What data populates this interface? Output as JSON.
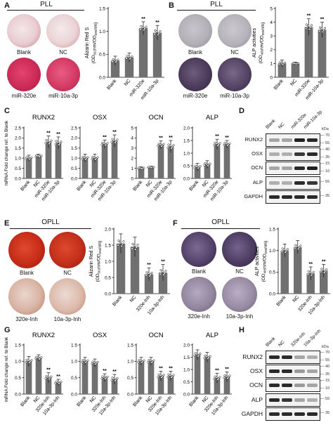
{
  "panels": {
    "A": {
      "letter": "A",
      "title": "PLL",
      "dishes": [
        "Blank",
        "NC",
        "miR-320e",
        "miR-10a-3p"
      ]
    },
    "B": {
      "letter": "B",
      "title": "PLL",
      "dishes": [
        "Blank",
        "NC",
        "miR-320e",
        "miR-10a-3p"
      ]
    },
    "C": {
      "letter": "C"
    },
    "D": {
      "letter": "D",
      "lanes": [
        "Blank",
        "NC",
        "miR-320e",
        "miR-10a-3p"
      ],
      "kda_label": "kDa",
      "rows": [
        {
          "name": "RUNX2",
          "kda": [
            "70",
            "55"
          ]
        },
        {
          "name": "OSX",
          "kda": [
            "40",
            "35"
          ]
        },
        {
          "name": "OCN",
          "kda": [
            "15",
            "10"
          ]
        },
        {
          "name": "ALP",
          "kda": [
            "55"
          ]
        },
        {
          "name": "GAPDH",
          "kda": [
            "35"
          ]
        }
      ]
    },
    "E": {
      "letter": "E",
      "title": "OPLL",
      "dishes": [
        "Blank",
        "NC",
        "320e-Inh",
        "10a-3p-Inh"
      ]
    },
    "F": {
      "letter": "F",
      "title": "OPLL",
      "dishes": [
        "Blank",
        "NC",
        "320e-Inh",
        "10a-3p-Inh"
      ]
    },
    "G": {
      "letter": "G"
    },
    "H": {
      "letter": "H",
      "lanes": [
        "Blank",
        "NC",
        "320e-Inh",
        "10a-3p-Inh"
      ],
      "kda_label": "kDa",
      "rows": [
        {
          "name": "RUNX2",
          "kda": [
            "70",
            "55"
          ]
        },
        {
          "name": "OSX",
          "kda": [
            "40",
            "35"
          ]
        },
        {
          "name": "OCN",
          "kda": [
            "15",
            "10"
          ]
        },
        {
          "name": "ALP",
          "kda": [
            "55"
          ]
        },
        {
          "name": "GAPDH",
          "kda": [
            "35"
          ]
        }
      ]
    }
  },
  "chart_data": [
    {
      "id": "A-bar",
      "type": "bar",
      "ylabel": "Alizarin Red S",
      "ylabel2": "(OD",
      "ylabel2_sub": "562",
      "ylabel2_mid": "nm/OD",
      "ylabel2_sub2": "595",
      "ylabel2_end": "nm)",
      "categories": [
        "Blank",
        "NC",
        "miR-320e",
        "miR-10a-3p"
      ],
      "values": [
        0.36,
        0.43,
        1.07,
        0.97
      ],
      "errors": [
        0.1,
        0.1,
        0.14,
        0.16
      ],
      "significance": [
        "",
        "",
        "**",
        "**"
      ],
      "ylim": [
        0,
        1.5
      ],
      "yticks": [
        "0.0",
        "0.5",
        "1.0",
        "1.5"
      ]
    },
    {
      "id": "B-bar",
      "type": "bar",
      "ylabel": "ALP activities",
      "ylabel2": "(OD",
      "ylabel2_sub": "405",
      "ylabel2_mid": "nm/OD",
      "ylabel2_sub2": "595",
      "ylabel2_end": "nm)",
      "categories": [
        "Blank",
        "NC",
        "miR-320e",
        "miR-10a-3p"
      ],
      "values": [
        1.0,
        1.0,
        3.65,
        3.45
      ],
      "errors": [
        0.25,
        0.1,
        0.6,
        0.55
      ],
      "significance": [
        "",
        "",
        "**",
        "**"
      ],
      "ylim": [
        0,
        5
      ],
      "yticks": [
        "0",
        "1",
        "2",
        "3",
        "4",
        "5"
      ]
    },
    {
      "id": "C-RUNX2",
      "type": "bar",
      "title": "RUNX2",
      "ylabel": "mRNA Fold change ref. to Blank",
      "categories": [
        "Blank",
        "NC",
        "miR-320e",
        "miR-10a-3p"
      ],
      "values": [
        1.0,
        1.1,
        1.8,
        1.75
      ],
      "errors": [
        0.15,
        0.1,
        0.3,
        0.3
      ],
      "significance": [
        "",
        "",
        "**",
        "**"
      ],
      "ylim": [
        0,
        2.5
      ],
      "yticks": [
        "0.0",
        "0.5",
        "1.0",
        "1.5",
        "2.0",
        "2.5"
      ]
    },
    {
      "id": "C-OSX",
      "type": "bar",
      "title": "OSX",
      "categories": [
        "Blank",
        "NC",
        "miR-320e",
        "miR-10a-3p"
      ],
      "values": [
        1.0,
        1.0,
        1.7,
        1.85
      ],
      "errors": [
        0.2,
        0.2,
        0.2,
        0.3
      ],
      "significance": [
        "",
        "",
        "**",
        "**"
      ],
      "ylim": [
        0,
        2.5
      ],
      "yticks": [
        "0.0",
        "0.5",
        "1.0",
        "1.5",
        "2.0",
        "2.5"
      ]
    },
    {
      "id": "C-OCN",
      "type": "bar",
      "title": "OCN",
      "categories": [
        "Blank",
        "NC",
        "miR-320e",
        "miR-10a-3p"
      ],
      "values": [
        1.0,
        1.1,
        3.3,
        3.15
      ],
      "errors": [
        0.15,
        0.1,
        0.4,
        0.6
      ],
      "significance": [
        "",
        "",
        "**",
        "**"
      ],
      "ylim": [
        0,
        5
      ],
      "yticks": [
        "0",
        "1",
        "2",
        "3",
        "4",
        "5"
      ]
    },
    {
      "id": "C-ALP",
      "type": "bar",
      "title": "ALP",
      "categories": [
        "Blank",
        "NC",
        "miR-320e",
        "miR-10a-3p"
      ],
      "values": [
        0.45,
        0.55,
        1.35,
        1.35
      ],
      "errors": [
        0.15,
        0.15,
        0.2,
        0.15
      ],
      "significance": [
        "",
        "",
        "**",
        "**"
      ],
      "ylim": [
        0,
        2.0
      ],
      "yticks": [
        "0.0",
        "0.5",
        "1.0",
        "1.5",
        "2.0"
      ]
    },
    {
      "id": "E-bar",
      "type": "bar",
      "ylabel": "Alizarin Red S",
      "ylabel2": "(OD",
      "ylabel2_sub": "562",
      "ylabel2_mid": "nm/OD",
      "ylabel2_sub2": "595",
      "ylabel2_end": "nm)",
      "categories": [
        "Blank",
        "NC",
        "320e-Inh",
        "10a-3p-Inh"
      ],
      "values": [
        1.55,
        1.45,
        0.6,
        0.65
      ],
      "errors": [
        0.3,
        0.3,
        0.2,
        0.25
      ],
      "significance": [
        "",
        "",
        "**",
        "**"
      ],
      "ylim": [
        0,
        2.0
      ],
      "yticks": [
        "0.0",
        "0.5",
        "1.0",
        "1.5",
        "2.0"
      ]
    },
    {
      "id": "F-bar",
      "type": "bar",
      "ylabel": "ALP activities",
      "ylabel2": "(OD",
      "ylabel2_sub": "405",
      "ylabel2_mid": "nm/OD",
      "ylabel2_sub2": "595",
      "ylabel2_end": "nm)",
      "categories": [
        "Blank",
        "NC",
        "320e-Inh",
        "10a-3p-Inh"
      ],
      "values": [
        1.0,
        1.08,
        0.47,
        0.53
      ],
      "errors": [
        0.15,
        0.15,
        0.15,
        0.15
      ],
      "significance": [
        "",
        "",
        "**",
        "**"
      ],
      "ylim": [
        0,
        1.5
      ],
      "yticks": [
        "0.0",
        "0.5",
        "1.0",
        "1.5"
      ]
    },
    {
      "id": "G-RUNX2",
      "type": "bar",
      "title": "RUNX2",
      "ylabel": "mRNA Fold change ref. to Blank",
      "categories": [
        "Blank",
        "NC",
        "320e-Inh",
        "10a-3p-Inh"
      ],
      "values": [
        1.0,
        1.1,
        0.5,
        0.35
      ],
      "errors": [
        0.15,
        0.1,
        0.15,
        0.1
      ],
      "significance": [
        "",
        "",
        "**",
        "**"
      ],
      "ylim": [
        0,
        1.5
      ],
      "yticks": [
        "0.0",
        "0.5",
        "1.0",
        "1.5"
      ]
    },
    {
      "id": "G-OSX",
      "type": "bar",
      "title": "OSX",
      "categories": [
        "Blank",
        "NC",
        "320e-Inh",
        "10a-3p-Inh"
      ],
      "values": [
        1.0,
        0.95,
        0.5,
        0.45
      ],
      "errors": [
        0.12,
        0.12,
        0.12,
        0.15
      ],
      "significance": [
        "",
        "",
        "**",
        "**"
      ],
      "ylim": [
        0,
        1.5
      ],
      "yticks": [
        "0.0",
        "0.5",
        "1.0",
        "1.5"
      ]
    },
    {
      "id": "G-OCN",
      "type": "bar",
      "title": "OCN",
      "categories": [
        "Blank",
        "NC",
        "320e-Inh",
        "10a-3p-Inh"
      ],
      "values": [
        1.0,
        1.0,
        0.55,
        0.55
      ],
      "errors": [
        0.12,
        0.12,
        0.15,
        0.15
      ],
      "significance": [
        "",
        "",
        "**",
        "**"
      ],
      "ylim": [
        0,
        1.5
      ],
      "yticks": [
        "0.0",
        "0.5",
        "1.0",
        "1.5"
      ]
    },
    {
      "id": "G-ALP",
      "type": "bar",
      "title": "ALP",
      "categories": [
        "Blank",
        "NC",
        "320e-Inh",
        "10a-3p-Inh"
      ],
      "values": [
        1.6,
        1.5,
        0.65,
        0.7
      ],
      "errors": [
        0.2,
        0.2,
        0.2,
        0.2
      ],
      "significance": [
        "",
        "",
        "**",
        "**"
      ],
      "ylim": [
        0,
        2.0
      ],
      "yticks": [
        "0.0",
        "0.5",
        "1.0",
        "1.5",
        "2.0"
      ]
    }
  ],
  "colors": {
    "bar": "#707070",
    "axis": "#111111",
    "points": "#ffffff"
  }
}
